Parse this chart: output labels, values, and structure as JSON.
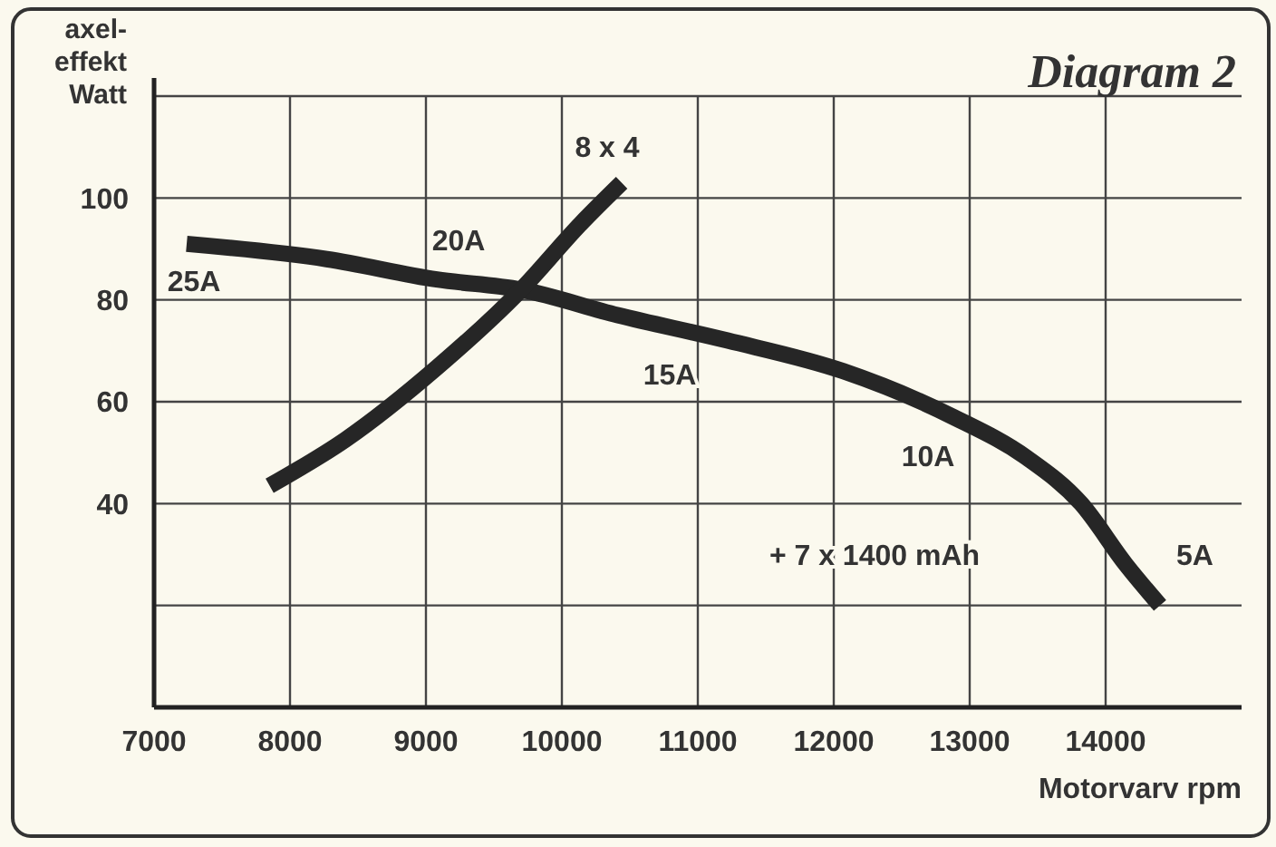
{
  "chart_data": {
    "type": "line",
    "title": "Diagram 2",
    "xlabel": "Motorvarv rpm",
    "ylabel": "axel-\neffekt\nWatt",
    "xlim": [
      7000,
      15000
    ],
    "ylim": [
      0,
      120
    ],
    "xticks": [
      7000,
      8000,
      9000,
      10000,
      11000,
      12000,
      13000,
      14000
    ],
    "yticks": [
      {
        "value": 20,
        "label": null
      },
      40,
      60,
      80,
      100,
      {
        "value": 120,
        "label": null
      }
    ],
    "grid": true,
    "legend": false,
    "marker": "none",
    "line_style": "solid",
    "series": [
      {
        "color": "#262626",
        "x": [
          7240,
          8270,
          9080,
          9700,
          10410,
          11220,
          12070,
          12880,
          13420,
          13820,
          14150,
          14400
        ],
        "values": [
          91,
          88,
          84,
          82,
          77,
          72,
          66,
          57,
          49,
          40,
          28,
          20
        ]
      },
      {
        "name": "8 x 4",
        "color": "#262626",
        "x": [
          7850,
          8410,
          9080,
          9700,
          10140,
          10440
        ],
        "values": [
          43.5,
          52.6,
          66.7,
          82,
          95,
          103
        ]
      }
    ],
    "annotations": [
      {
        "text": "25A",
        "x": 7240,
        "y": 91
      },
      {
        "text": "20A",
        "x": 9080,
        "y": 84
      },
      {
        "text": "15A",
        "x": 10900,
        "y": 74
      },
      {
        "text": "10A",
        "x": 12800,
        "y": 58
      },
      {
        "text": "5A",
        "x": 14150,
        "y": 28
      },
      "+ 7 x 1400 mAh"
    ]
  }
}
